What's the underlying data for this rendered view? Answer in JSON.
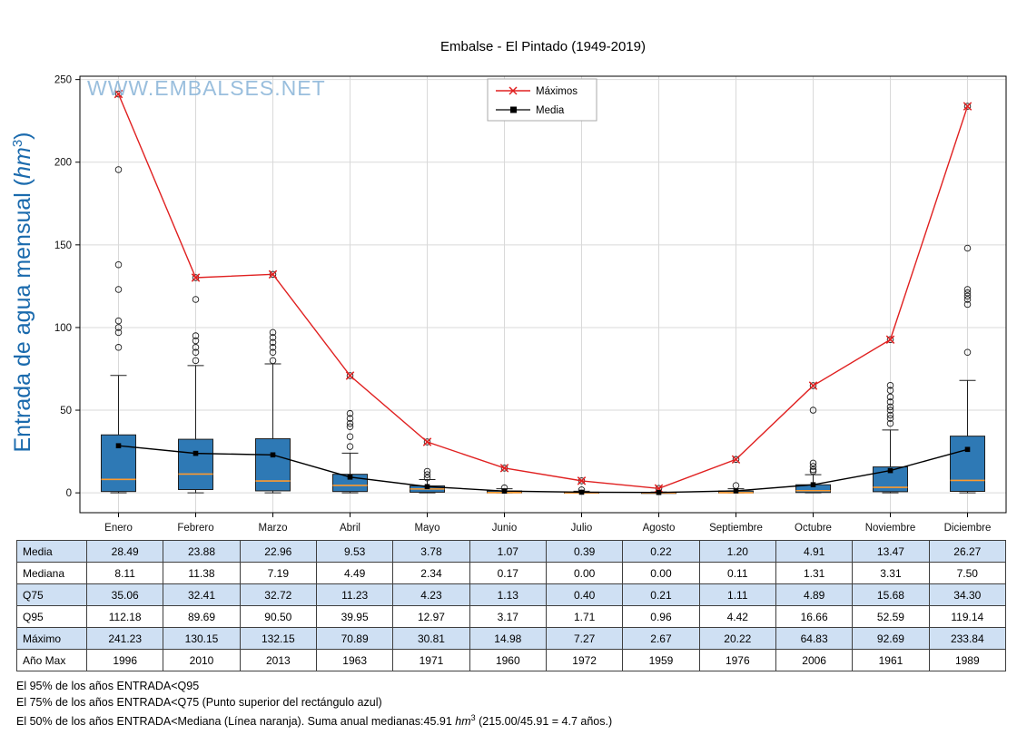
{
  "title": "Embalse - El Pintado (1949-2019)",
  "watermark": "WWW.EMBALSES.NET",
  "y_axis": {
    "prefix": "Entrada de agua mensual (",
    "unit": "hm",
    "sup": "3",
    "suffix": ")"
  },
  "legend": [
    {
      "label": "Máximos",
      "marker": "x",
      "color": "#e02020"
    },
    {
      "label": "Media",
      "marker": "square",
      "color": "#000000"
    }
  ],
  "colors": {
    "box_fill": "#2e79b5",
    "median": "#ff9a2e",
    "grid": "#d9d9d9",
    "max_line": "#e02020",
    "media_line": "#000000",
    "watermark": "#8fb8da",
    "ylabel": "#1a6aad",
    "table_row_blue": "#cfe0f3"
  },
  "chart_data": {
    "type": "boxplot",
    "title": "Embalse - El Pintado (1949-2019)",
    "ylabel": "Entrada de agua mensual (hm3)",
    "grid": true,
    "legend_position": "top-center",
    "categories": [
      "Enero",
      "Febrero",
      "Marzo",
      "Abril",
      "Mayo",
      "Junio",
      "Julio",
      "Agosto",
      "Septiembre",
      "Octubre",
      "Noviembre",
      "Diciembre"
    ],
    "ylim": [
      -12,
      252
    ],
    "yticks": [
      0,
      50,
      100,
      150,
      200,
      250
    ],
    "series": [
      {
        "name": "Máximos",
        "color": "#e02020",
        "marker": "x",
        "values": [
          241.23,
          130.15,
          132.15,
          70.89,
          30.81,
          14.98,
          7.27,
          2.67,
          20.22,
          64.83,
          92.69,
          233.84
        ]
      },
      {
        "name": "Media",
        "color": "#000000",
        "marker": "square",
        "values": [
          28.49,
          23.88,
          22.96,
          9.53,
          3.78,
          1.07,
          0.39,
          0.22,
          1.2,
          4.91,
          13.47,
          26.27
        ]
      }
    ],
    "box": {
      "median": [
        8.11,
        11.38,
        7.19,
        4.49,
        2.34,
        0.17,
        0.0,
        0.0,
        0.11,
        1.31,
        3.31,
        7.5
      ],
      "q25": [
        0.8,
        2.0,
        1.2,
        0.8,
        0.4,
        0.02,
        0.0,
        0.0,
        0.02,
        0.2,
        0.7,
        0.9
      ],
      "q75": [
        35.06,
        32.41,
        32.72,
        11.23,
        4.23,
        1.13,
        0.4,
        0.21,
        1.11,
        4.89,
        15.68,
        34.3
      ],
      "whisker_low": [
        0,
        0,
        0,
        0,
        0,
        0,
        0,
        0,
        0,
        0,
        0,
        0
      ],
      "whisker_high": [
        71,
        77,
        78,
        24,
        8,
        2.5,
        1,
        0.5,
        2.5,
        11,
        38,
        68
      ],
      "outliers": [
        [
          241.23,
          195.5,
          138,
          123,
          104,
          100,
          97,
          88
        ],
        [
          130.15,
          117,
          95,
          92,
          88,
          85,
          80
        ],
        [
          132.15,
          97,
          94,
          91,
          88,
          85,
          80
        ],
        [
          70.89,
          48,
          45,
          42,
          40,
          34,
          28
        ],
        [
          30.81,
          13,
          11,
          9
        ],
        [
          14.98,
          3
        ],
        [
          7.27,
          1.8
        ],
        [
          2.67
        ],
        [
          20.22,
          4.4
        ],
        [
          64.83,
          50,
          18,
          16,
          14,
          13
        ],
        [
          92.69,
          65,
          62,
          58,
          55,
          52,
          50,
          47,
          45,
          42
        ],
        [
          233.84,
          148,
          123,
          121,
          119,
          117,
          114,
          85
        ]
      ]
    }
  },
  "table": {
    "row_labels": [
      "Media",
      "Mediana",
      "Q75",
      "Q95",
      "Máximo",
      "Año Max"
    ],
    "rows": [
      [
        "28.49",
        "23.88",
        "22.96",
        "9.53",
        "3.78",
        "1.07",
        "0.39",
        "0.22",
        "1.20",
        "4.91",
        "13.47",
        "26.27"
      ],
      [
        "8.11",
        "11.38",
        "7.19",
        "4.49",
        "2.34",
        "0.17",
        "0.00",
        "0.00",
        "0.11",
        "1.31",
        "3.31",
        "7.50"
      ],
      [
        "35.06",
        "32.41",
        "32.72",
        "11.23",
        "4.23",
        "1.13",
        "0.40",
        "0.21",
        "1.11",
        "4.89",
        "15.68",
        "34.30"
      ],
      [
        "112.18",
        "89.69",
        "90.50",
        "39.95",
        "12.97",
        "3.17",
        "1.71",
        "0.96",
        "4.42",
        "16.66",
        "52.59",
        "119.14"
      ],
      [
        "241.23",
        "130.15",
        "132.15",
        "70.89",
        "30.81",
        "14.98",
        "7.27",
        "2.67",
        "20.22",
        "64.83",
        "92.69",
        "233.84"
      ],
      [
        "1996",
        "2010",
        "2013",
        "1963",
        "1971",
        "1960",
        "1972",
        "1959",
        "1976",
        "2006",
        "1961",
        "1989"
      ]
    ]
  },
  "footnotes": {
    "line1": "El 95% de los años ENTRADA<Q95",
    "line2": "El 75% de los años ENTRADA<Q75 (Punto superior del rectángulo azul)",
    "line3_pre": "El 50% de los años ENTRADA<Mediana (Línea naranja). Suma anual medianas:45.91 ",
    "line3_unit": "hm",
    "line3_sup": "3",
    "line3_post": " (215.00/45.91 = 4.7 años.)"
  }
}
